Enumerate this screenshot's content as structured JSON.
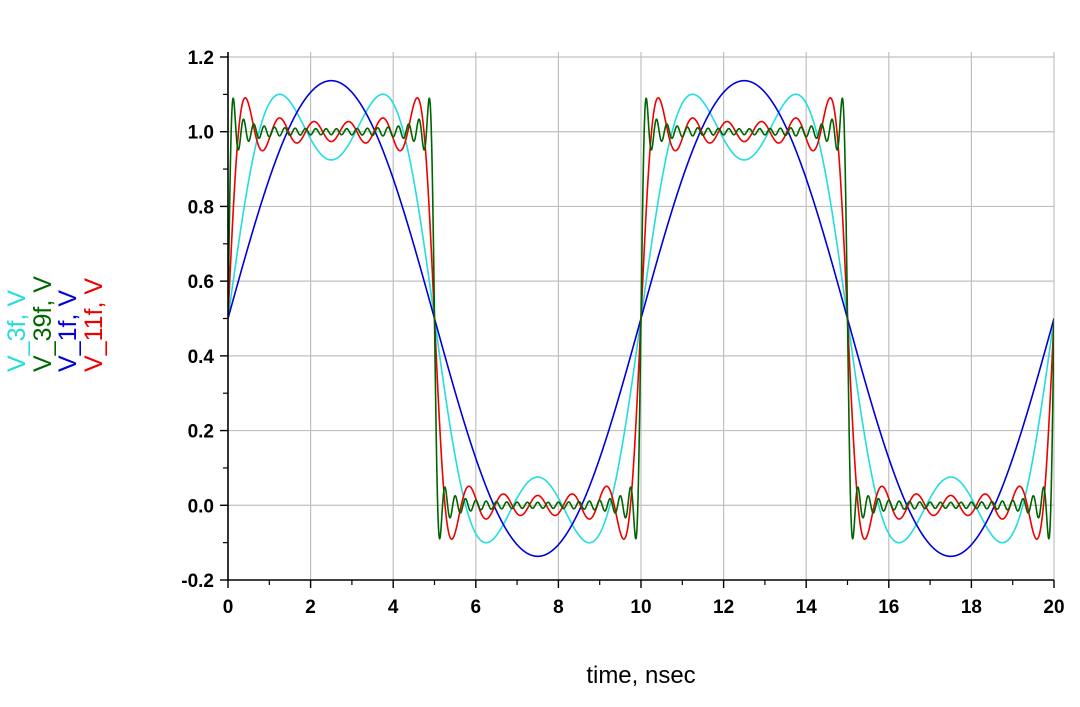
{
  "chart_data": {
    "type": "line",
    "title": "",
    "xlabel": "time, nsec",
    "ylabel": "",
    "xlim": [
      0,
      20
    ],
    "ylim": [
      -0.2,
      1.2
    ],
    "grid": true,
    "x_ticks": [
      0,
      2,
      4,
      6,
      8,
      10,
      12,
      14,
      16,
      18,
      20
    ],
    "x_tick_labels": [
      "0",
      "2",
      "4",
      "6",
      "8",
      "10",
      "12",
      "14",
      "16",
      "18",
      "20"
    ],
    "y_ticks": [
      -0.2,
      0.0,
      0.2,
      0.4,
      0.6,
      0.8,
      1.0,
      1.2
    ],
    "y_tick_labels": [
      "-0.2",
      "0.0",
      "0.2",
      "0.4",
      "0.6",
      "0.8",
      "1.0",
      "1.2"
    ],
    "period_ns": 10,
    "offset_v": 0.5,
    "series": [
      {
        "name": "V_3f, V",
        "color": "#22dddd",
        "harmonics": [
          1,
          3
        ]
      },
      {
        "name": "V_39f, V",
        "color": "#006400",
        "harmonics": [
          1,
          3,
          5,
          7,
          9,
          11,
          13,
          15,
          17,
          19,
          21,
          23,
          25,
          27,
          29,
          31,
          33,
          35,
          37,
          39
        ]
      },
      {
        "name": "V_1f, V",
        "color": "#0000dd",
        "harmonics": [
          1
        ]
      },
      {
        "name": "V_11f, V",
        "color": "#ee0000",
        "harmonics": [
          1,
          3,
          5,
          7,
          9,
          11
        ]
      }
    ]
  }
}
